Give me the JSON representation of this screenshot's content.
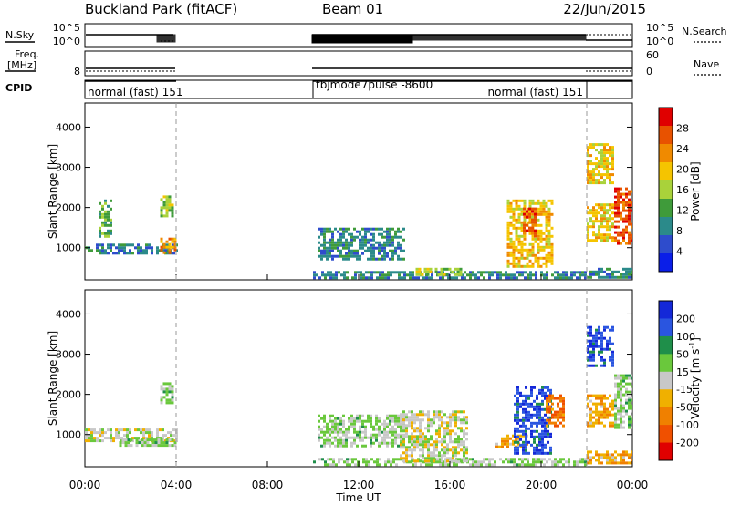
{
  "header": {
    "station": "Buckland Park (fitACF)",
    "beam": "Beam 01",
    "date": "22/Jun/2015"
  },
  "status_panel": {
    "nsky_label": "N.Sky",
    "nsearch_label": "N.Search",
    "freq_label": "Freq.",
    "freq_unit": "[MHz]",
    "nave_label": "Nave",
    "cpid_label": "CPID",
    "left_ticks_noise": [
      "10^5",
      "10^0"
    ],
    "right_ticks_noise": [
      "10^5",
      "10^0"
    ],
    "left_ticks_freq": [
      "8"
    ],
    "right_ticks_nave": [
      "60",
      "0"
    ],
    "cpid_entries": [
      {
        "label": "normal (fast) 151",
        "start_hour": 0.0,
        "end_hour": 4.0
      },
      {
        "label": "tbjmode7pulse -8600",
        "start_hour": 10.0,
        "end_hour": 22.0
      },
      {
        "label": "normal (fast) 151",
        "start_hour": 22.0,
        "end_hour": 24.0
      }
    ]
  },
  "x_axis": {
    "label": "Time UT",
    "ticks": [
      "00:00",
      "04:00",
      "08:00",
      "12:00",
      "16:00",
      "20:00",
      "00:00"
    ],
    "tick_hours": [
      0,
      4,
      8,
      12,
      16,
      20,
      24
    ],
    "range_hours": [
      0,
      24
    ]
  },
  "colors": {
    "power_scale": [
      "#0a1ee8",
      "#2e4ccc",
      "#2b8a8a",
      "#3f9b3a",
      "#a9d23a",
      "#f5c400",
      "#f08a00",
      "#e85200",
      "#e00000"
    ],
    "velocity_scale": [
      "#1428d8",
      "#2a55e0",
      "#1f8f4a",
      "#6ac83c",
      "#c8c8c8",
      "#f0b000",
      "#f08000",
      "#f05000",
      "#e00000"
    ]
  },
  "chart_data": [
    {
      "type": "heatmap",
      "name": "power",
      "ylabel": "Slant Range [km]",
      "y_ticks": [
        1000,
        2000,
        3000,
        4000
      ],
      "ylim": [
        200,
        4600
      ],
      "colorbar": {
        "label": "Power [dB]",
        "ticks": [
          4,
          8,
          12,
          16,
          20,
          24,
          28
        ],
        "range": [
          0,
          32
        ]
      },
      "regions": [
        {
          "hours": [
            0.0,
            4.0
          ],
          "range_km": [
            850,
            1100
          ],
          "value": 8
        },
        {
          "hours": [
            3.3,
            4.0
          ],
          "range_km": [
            850,
            1250
          ],
          "value": 24
        },
        {
          "hours": [
            0.6,
            1.2
          ],
          "range_km": [
            1300,
            2200
          ],
          "value": 12
        },
        {
          "hours": [
            3.3,
            3.9
          ],
          "range_km": [
            1800,
            2300
          ],
          "value": 16
        },
        {
          "hours": [
            10.0,
            22.0
          ],
          "range_km": [
            250,
            420
          ],
          "value": 8
        },
        {
          "hours": [
            10.2,
            14.0
          ],
          "range_km": [
            700,
            1500
          ],
          "value": 8
        },
        {
          "hours": [
            14.5,
            16.5
          ],
          "range_km": [
            300,
            500
          ],
          "value": 16
        },
        {
          "hours": [
            18.5,
            20.5
          ],
          "range_km": [
            500,
            2200
          ],
          "value": 20
        },
        {
          "hours": [
            19.2,
            19.8
          ],
          "range_km": [
            1300,
            2000
          ],
          "value": 28
        },
        {
          "hours": [
            22.0,
            24.0
          ],
          "range_km": [
            250,
            500
          ],
          "value": 8
        },
        {
          "hours": [
            22.0,
            23.2
          ],
          "range_km": [
            1200,
            2100
          ],
          "value": 20
        },
        {
          "hours": [
            22.0,
            23.2
          ],
          "range_km": [
            2600,
            3600
          ],
          "value": 20
        },
        {
          "hours": [
            23.2,
            24.0
          ],
          "range_km": [
            1100,
            2500
          ],
          "value": 28
        }
      ]
    },
    {
      "type": "heatmap",
      "name": "velocity",
      "ylabel": "Slant Range [km]",
      "y_ticks": [
        1000,
        2000,
        3000,
        4000
      ],
      "ylim": [
        200,
        4600
      ],
      "colorbar": {
        "label": "Velocity [m s",
        "label_sup": "-1",
        "label_end": "]",
        "ticks": [
          "200",
          "100",
          "50",
          "15",
          "-15",
          "-50",
          "-100",
          "-200"
        ],
        "range": [
          -250,
          250
        ]
      },
      "regions": [
        {
          "hours": [
            0.0,
            4.0
          ],
          "range_km": [
            850,
            1150
          ],
          "value": 0
        },
        {
          "hours": [
            1.5,
            4.0
          ],
          "range_km": [
            700,
            900
          ],
          "value": 40
        },
        {
          "hours": [
            3.3,
            3.9
          ],
          "range_km": [
            1800,
            2300
          ],
          "value": 40
        },
        {
          "hours": [
            10.0,
            22.0
          ],
          "range_km": [
            250,
            420
          ],
          "value": 40
        },
        {
          "hours": [
            10.2,
            14.0
          ],
          "range_km": [
            700,
            1500
          ],
          "value": 40
        },
        {
          "hours": [
            13.8,
            16.8
          ],
          "range_km": [
            350,
            1600
          ],
          "value": 0
        },
        {
          "hours": [
            18.0,
            19.4
          ],
          "range_km": [
            700,
            1000
          ],
          "value": -80
        },
        {
          "hours": [
            18.8,
            20.4
          ],
          "range_km": [
            500,
            2200
          ],
          "value": 200
        },
        {
          "hours": [
            20.2,
            21.0
          ],
          "range_km": [
            1200,
            2000
          ],
          "value": -150
        },
        {
          "hours": [
            22.0,
            24.0
          ],
          "range_km": [
            300,
            600
          ],
          "value": -80
        },
        {
          "hours": [
            22.0,
            23.2
          ],
          "range_km": [
            1200,
            2000
          ],
          "value": -80
        },
        {
          "hours": [
            22.0,
            23.2
          ],
          "range_km": [
            2700,
            3700
          ],
          "value": 200
        },
        {
          "hours": [
            23.2,
            24.0
          ],
          "range_km": [
            1200,
            2500
          ],
          "value": 40
        }
      ]
    }
  ]
}
